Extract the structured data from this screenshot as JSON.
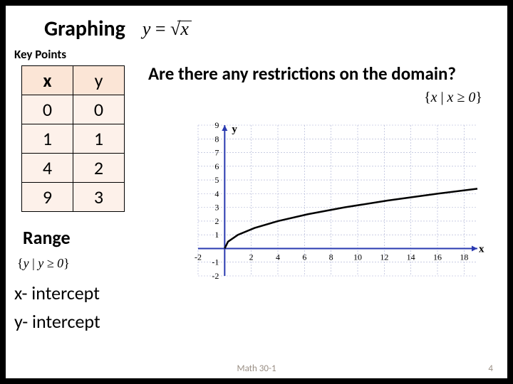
{
  "title": "Graphing",
  "formula_lhs": "y",
  "formula_rhs_var": "x",
  "key_points_label": "Key Points",
  "table": {
    "headers": [
      "x",
      "y"
    ],
    "rows": [
      [
        "0",
        "0"
      ],
      [
        "1",
        "1"
      ],
      [
        "4",
        "2"
      ],
      [
        "9",
        "3"
      ]
    ],
    "header_bg": "#fbe5d6",
    "cell_bg": "#fdf1ea"
  },
  "range_label": "Range",
  "range_formula_var": "y",
  "range_formula_cond": "y ≥ 0",
  "x_intercept_label": "x- intercept",
  "y_intercept_label": "y- intercept",
  "question": "Are there any restrictions on the domain?",
  "domain_formula_var": "x",
  "domain_formula_cond": "x ≥ 0",
  "footer": {
    "course": "Math 30-1",
    "page": "4"
  },
  "chart": {
    "type": "line",
    "xlim": [
      -2,
      19
    ],
    "ylim": [
      -2,
      9
    ],
    "xtick_step": 2,
    "ytick_step": 1,
    "x_axis_label": "x",
    "y_axis_label": "y",
    "axis_color": "#2a3ab0",
    "grid_color": "#a8aed2",
    "curve_color": "#000000",
    "curve_width": 2.5,
    "background": "#ffffff",
    "curve_points_sample": [
      [
        0,
        0
      ],
      [
        0.25,
        0.5
      ],
      [
        1,
        1
      ],
      [
        2.25,
        1.5
      ],
      [
        4,
        2
      ],
      [
        6.25,
        2.5
      ],
      [
        9,
        3
      ],
      [
        12.25,
        3.5
      ],
      [
        16,
        4
      ],
      [
        19,
        4.36
      ]
    ]
  }
}
